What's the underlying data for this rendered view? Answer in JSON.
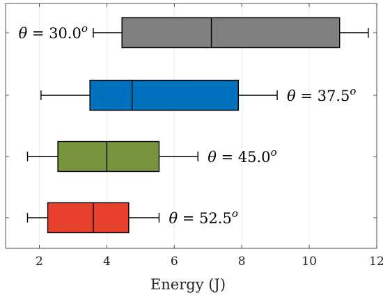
{
  "chart_data": {
    "type": "boxplot",
    "orientation": "horizontal",
    "xlabel": "Energy (J)",
    "xlim": [
      1,
      12
    ],
    "xticks": [
      2,
      4,
      6,
      8,
      10,
      12
    ],
    "grid": "vertical",
    "legend": "none",
    "series": [
      {
        "label_symbol": "θ",
        "label_value": "= 30.0",
        "label_unit": "o",
        "label_side": "left",
        "color": "#808080",
        "whisker_low": 3.6,
        "q1": 4.45,
        "median": 7.1,
        "q3": 10.9,
        "whisker_high": 11.75
      },
      {
        "label_symbol": "θ",
        "label_value": "= 37.5",
        "label_unit": "o",
        "label_side": "right",
        "color": "#0072BD",
        "whisker_low": 2.05,
        "q1": 3.5,
        "median": 4.75,
        "q3": 7.9,
        "whisker_high": 9.05
      },
      {
        "label_symbol": "θ",
        "label_value": "= 45.0",
        "label_unit": "o",
        "label_side": "right",
        "color": "#77933C",
        "whisker_low": 1.65,
        "q1": 2.55,
        "median": 4.0,
        "q3": 5.55,
        "whisker_high": 6.7
      },
      {
        "label_symbol": "θ",
        "label_value": "= 52.5",
        "label_unit": "o",
        "label_side": "right",
        "color": "#E8412B",
        "whisker_low": 1.65,
        "q1": 2.25,
        "median": 3.6,
        "q3": 4.65,
        "whisker_high": 5.55
      }
    ]
  }
}
